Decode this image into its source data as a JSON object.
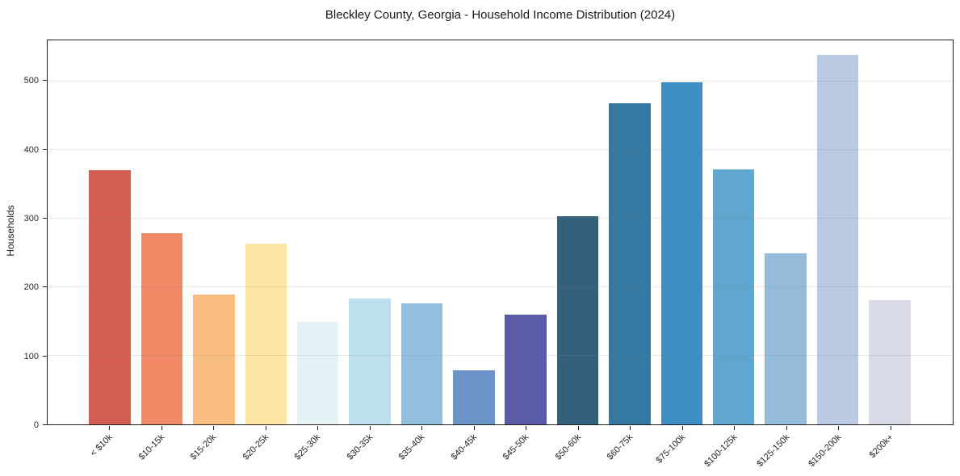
{
  "chart_data": {
    "type": "bar",
    "title": "Bleckley County, Georgia - Household Income Distribution (2024)",
    "xlabel": "",
    "ylabel": "Households",
    "categories": [
      "< $10k",
      "$10-15k",
      "$15-20k",
      "$20-25k",
      "$25-30k",
      "$30-35k",
      "$35-40k",
      "$40-45k",
      "$45-50k",
      "$50-60k",
      "$60-75k",
      "$75-100k",
      "$100-125k",
      "$125-150k",
      "$150-200k",
      "$200k+"
    ],
    "values": [
      371,
      279,
      190,
      263,
      149,
      184,
      177,
      79,
      160,
      304,
      468,
      499,
      372,
      250,
      539,
      181
    ],
    "bar_colors": [
      "#d45d52",
      "#f28a67",
      "#fabd80",
      "#fce5a4",
      "#e6f1f6",
      "#bedfec",
      "#94bedd",
      "#6c94c9",
      "#5c5ba8",
      "#34607c",
      "#3579a2",
      "#3b8fc4",
      "#60a7cf",
      "#94bbda",
      "#b9cae2",
      "#d9dbe9"
    ],
    "yticks": [
      0,
      100,
      200,
      300,
      400,
      500
    ],
    "ylim": [
      0,
      560
    ],
    "grid": "horizontal",
    "gridline_color": "#e5e5e5",
    "spine_color": "#1f1f1f",
    "background_color": "#ffffff",
    "legend": "none",
    "bar_width_fraction": 0.8
  }
}
